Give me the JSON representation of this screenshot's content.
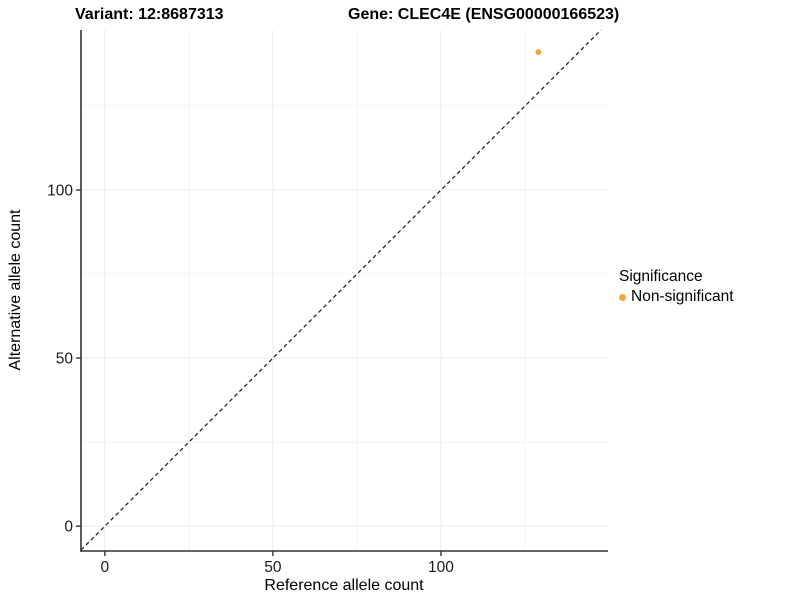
{
  "header": {
    "variant_title": "Variant: 12:8687313",
    "gene_title": "Gene: CLEC4E (ENSG00000166523)"
  },
  "axes": {
    "x_label": "Reference allele count",
    "y_label": "Alternative allele count"
  },
  "legend": {
    "title": "Significance",
    "items": [
      {
        "label": "Non-significant",
        "color": "#F7A440",
        "marker": "circle"
      }
    ]
  },
  "chart_data": {
    "type": "scatter",
    "title": "Variant: 12:8687313 / Gene: CLEC4E (ENSG00000166523)",
    "xlabel": "Reference allele count",
    "ylabel": "Alternative allele count",
    "xlim": [
      -7.1,
      149.7
    ],
    "ylim": [
      -7.4,
      147.6
    ],
    "x_ticks": [
      0,
      50,
      100
    ],
    "y_ticks": [
      0,
      50,
      100
    ],
    "x_minor_ticks": [
      25,
      75,
      125
    ],
    "y_minor_ticks": [
      25,
      75,
      125
    ],
    "grid": true,
    "legend_position": "right",
    "reference_line": {
      "type": "abline",
      "slope": 1,
      "intercept": 0,
      "style": "dashed",
      "color": "#1a1a1a"
    },
    "series": [
      {
        "name": "Non-significant",
        "color": "#F7A440",
        "points": [
          {
            "x": 129,
            "y": 141
          }
        ]
      }
    ],
    "style": {
      "grid_major_color": "#EBEBEB",
      "grid_minor_color": "#F4F4F4",
      "axis_line_color": "#333333",
      "tick_label_color": "#1a1a1a",
      "point_radius": 3,
      "background": "#ffffff"
    }
  }
}
